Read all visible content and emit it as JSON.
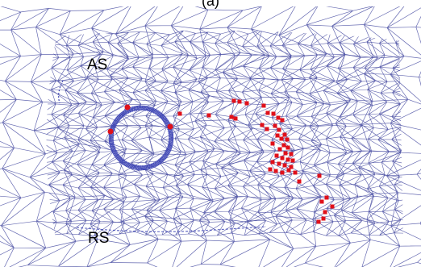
{
  "panel_label": "(a)",
  "labels": {
    "as": "AS",
    "rs": "RS"
  },
  "colors": {
    "mesh": "#4a4fa3",
    "ring": "#3f46b5",
    "points": "#e0101a",
    "background": "#ffffff",
    "text": "#000000"
  }
}
